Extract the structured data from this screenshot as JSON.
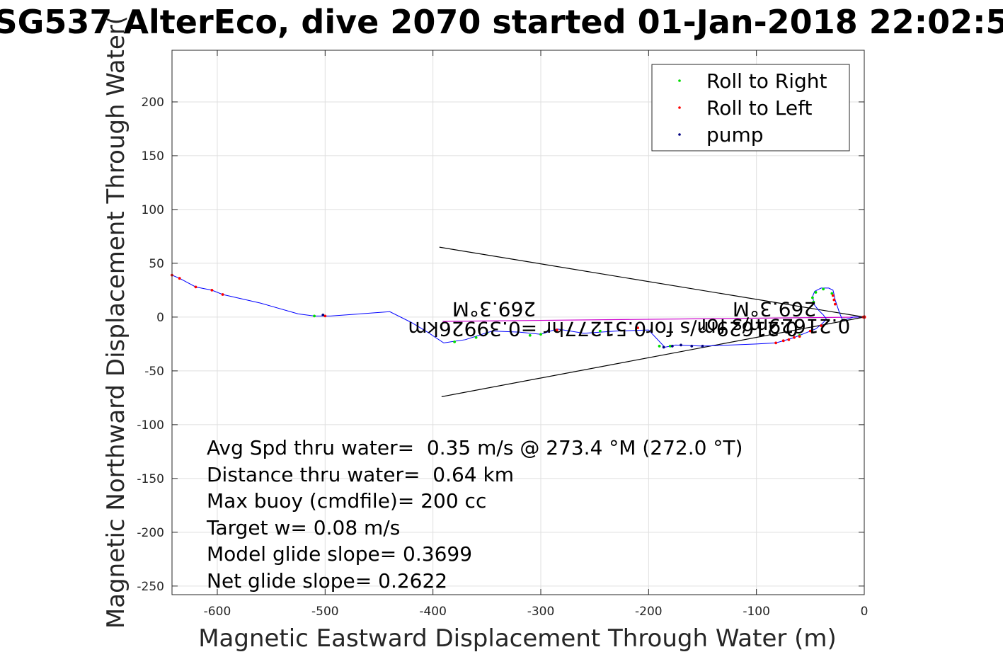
{
  "chart_data": {
    "type": "scatter",
    "title": "SG537 AlterEco, dive 2070 started 01-Jan-2018 22:02:5",
    "xlabel": "Magnetic Eastward Displacement Through Water (m)",
    "ylabel": "Magnetic Northward Displacement Through Water(",
    "xlim": [
      -642,
      0
    ],
    "ylim": [
      -258,
      248
    ],
    "xticks": [
      -600,
      -500,
      -400,
      -300,
      -200,
      -100,
      0
    ],
    "yticks": [
      200,
      150,
      100,
      50,
      0,
      -50,
      -100,
      -150,
      -200,
      -250
    ],
    "grid": true,
    "legend_position": "top-right",
    "colors": {
      "track": "#0000ff",
      "roll_right": "#00dd00",
      "roll_left": "#ff0000",
      "pump": "#000080",
      "vector": "#cc00cc",
      "cone": "#000000"
    },
    "legend": [
      "Roll to Right",
      "Roll to Left",
      "pump"
    ],
    "track": [
      [
        0,
        0
      ],
      [
        -10,
        0
      ],
      [
        -20,
        -3
      ],
      [
        -23,
        4
      ],
      [
        -25,
        10
      ],
      [
        -27,
        16
      ],
      [
        -28,
        21
      ],
      [
        -29,
        25
      ],
      [
        -33,
        27
      ],
      [
        -40,
        27
      ],
      [
        -46,
        24
      ],
      [
        -48,
        19
      ],
      [
        -47,
        15
      ],
      [
        -46,
        11
      ],
      [
        -42,
        6
      ],
      [
        -38,
        2
      ],
      [
        -35,
        -2
      ],
      [
        -40,
        -7
      ],
      [
        -45,
        -11
      ],
      [
        -55,
        -15
      ],
      [
        -65,
        -19
      ],
      [
        -75,
        -22
      ],
      [
        -82,
        -24
      ],
      [
        -100,
        -25
      ],
      [
        -150,
        -27
      ],
      [
        -175,
        -26
      ],
      [
        -185,
        -28
      ],
      [
        -200,
        -12
      ],
      [
        -230,
        -13
      ],
      [
        -260,
        -15
      ],
      [
        -285,
        -11
      ],
      [
        -300,
        -16
      ],
      [
        -320,
        -14
      ],
      [
        -345,
        -13
      ],
      [
        -370,
        -21
      ],
      [
        -390,
        -24
      ],
      [
        -405,
        -14
      ],
      [
        -420,
        -5
      ],
      [
        -440,
        5
      ],
      [
        -495,
        1
      ],
      [
        -510,
        1
      ],
      [
        -525,
        3
      ],
      [
        -560,
        13
      ],
      [
        -595,
        21
      ],
      [
        -605,
        25
      ],
      [
        -620,
        28
      ],
      [
        -635,
        36
      ],
      [
        -642,
        39
      ]
    ],
    "roll_right": [
      [
        -30,
        22
      ],
      [
        -38,
        26
      ],
      [
        -45,
        23
      ],
      [
        -48,
        18
      ],
      [
        -47,
        14
      ],
      [
        -60,
        -17
      ],
      [
        -180,
        -27
      ],
      [
        -190,
        -27
      ],
      [
        -245,
        -13
      ],
      [
        -300,
        -16
      ],
      [
        -310,
        -17
      ],
      [
        -350,
        -15
      ],
      [
        -360,
        -19
      ],
      [
        -380,
        -23
      ],
      [
        -510,
        1
      ]
    ],
    "roll_left": [
      [
        -1,
        0
      ],
      [
        -27,
        12
      ],
      [
        -28,
        16
      ],
      [
        -29,
        20
      ],
      [
        -40,
        -8
      ],
      [
        -50,
        -13
      ],
      [
        -60,
        -18
      ],
      [
        -65,
        -19
      ],
      [
        -70,
        -21
      ],
      [
        -75,
        -22
      ],
      [
        -82,
        -24
      ],
      [
        -210,
        -10
      ],
      [
        -285,
        -12
      ],
      [
        -500,
        1
      ],
      [
        -595,
        21
      ],
      [
        -605,
        25
      ],
      [
        -620,
        28
      ],
      [
        -635,
        36
      ],
      [
        -642,
        39
      ]
    ],
    "pump": [
      [
        -150,
        -27
      ],
      [
        -160,
        -27
      ],
      [
        -170,
        -26
      ],
      [
        -178,
        -27
      ],
      [
        -186,
        -28
      ],
      [
        -502,
        2
      ]
    ],
    "drift_vector": {
      "from": [
        0,
        0
      ],
      "to": [
        -391,
        -4
      ]
    },
    "cone": [
      [
        -394,
        65
      ],
      [
        0,
        0
      ],
      [
        -392,
        -74
      ]
    ],
    "annotations": {
      "mid_heading": "269.3°M",
      "mid_detail": "0.21629m/s for0.51277hr =0.39926km",
      "near_heading": "269.3°M",
      "near_detail": "0.21629m/s for"
    },
    "stats": [
      "Avg Spd thru water=  0.35 m/s @ 273.4 °M (272.0 °T)",
      "Distance thru water=  0.64 km",
      "Max buoy (cmdfile)= 200 cc",
      "Target w= 0.08 m/s",
      "Model glide slope= 0.3699",
      "Net glide slope= 0.2622"
    ]
  }
}
